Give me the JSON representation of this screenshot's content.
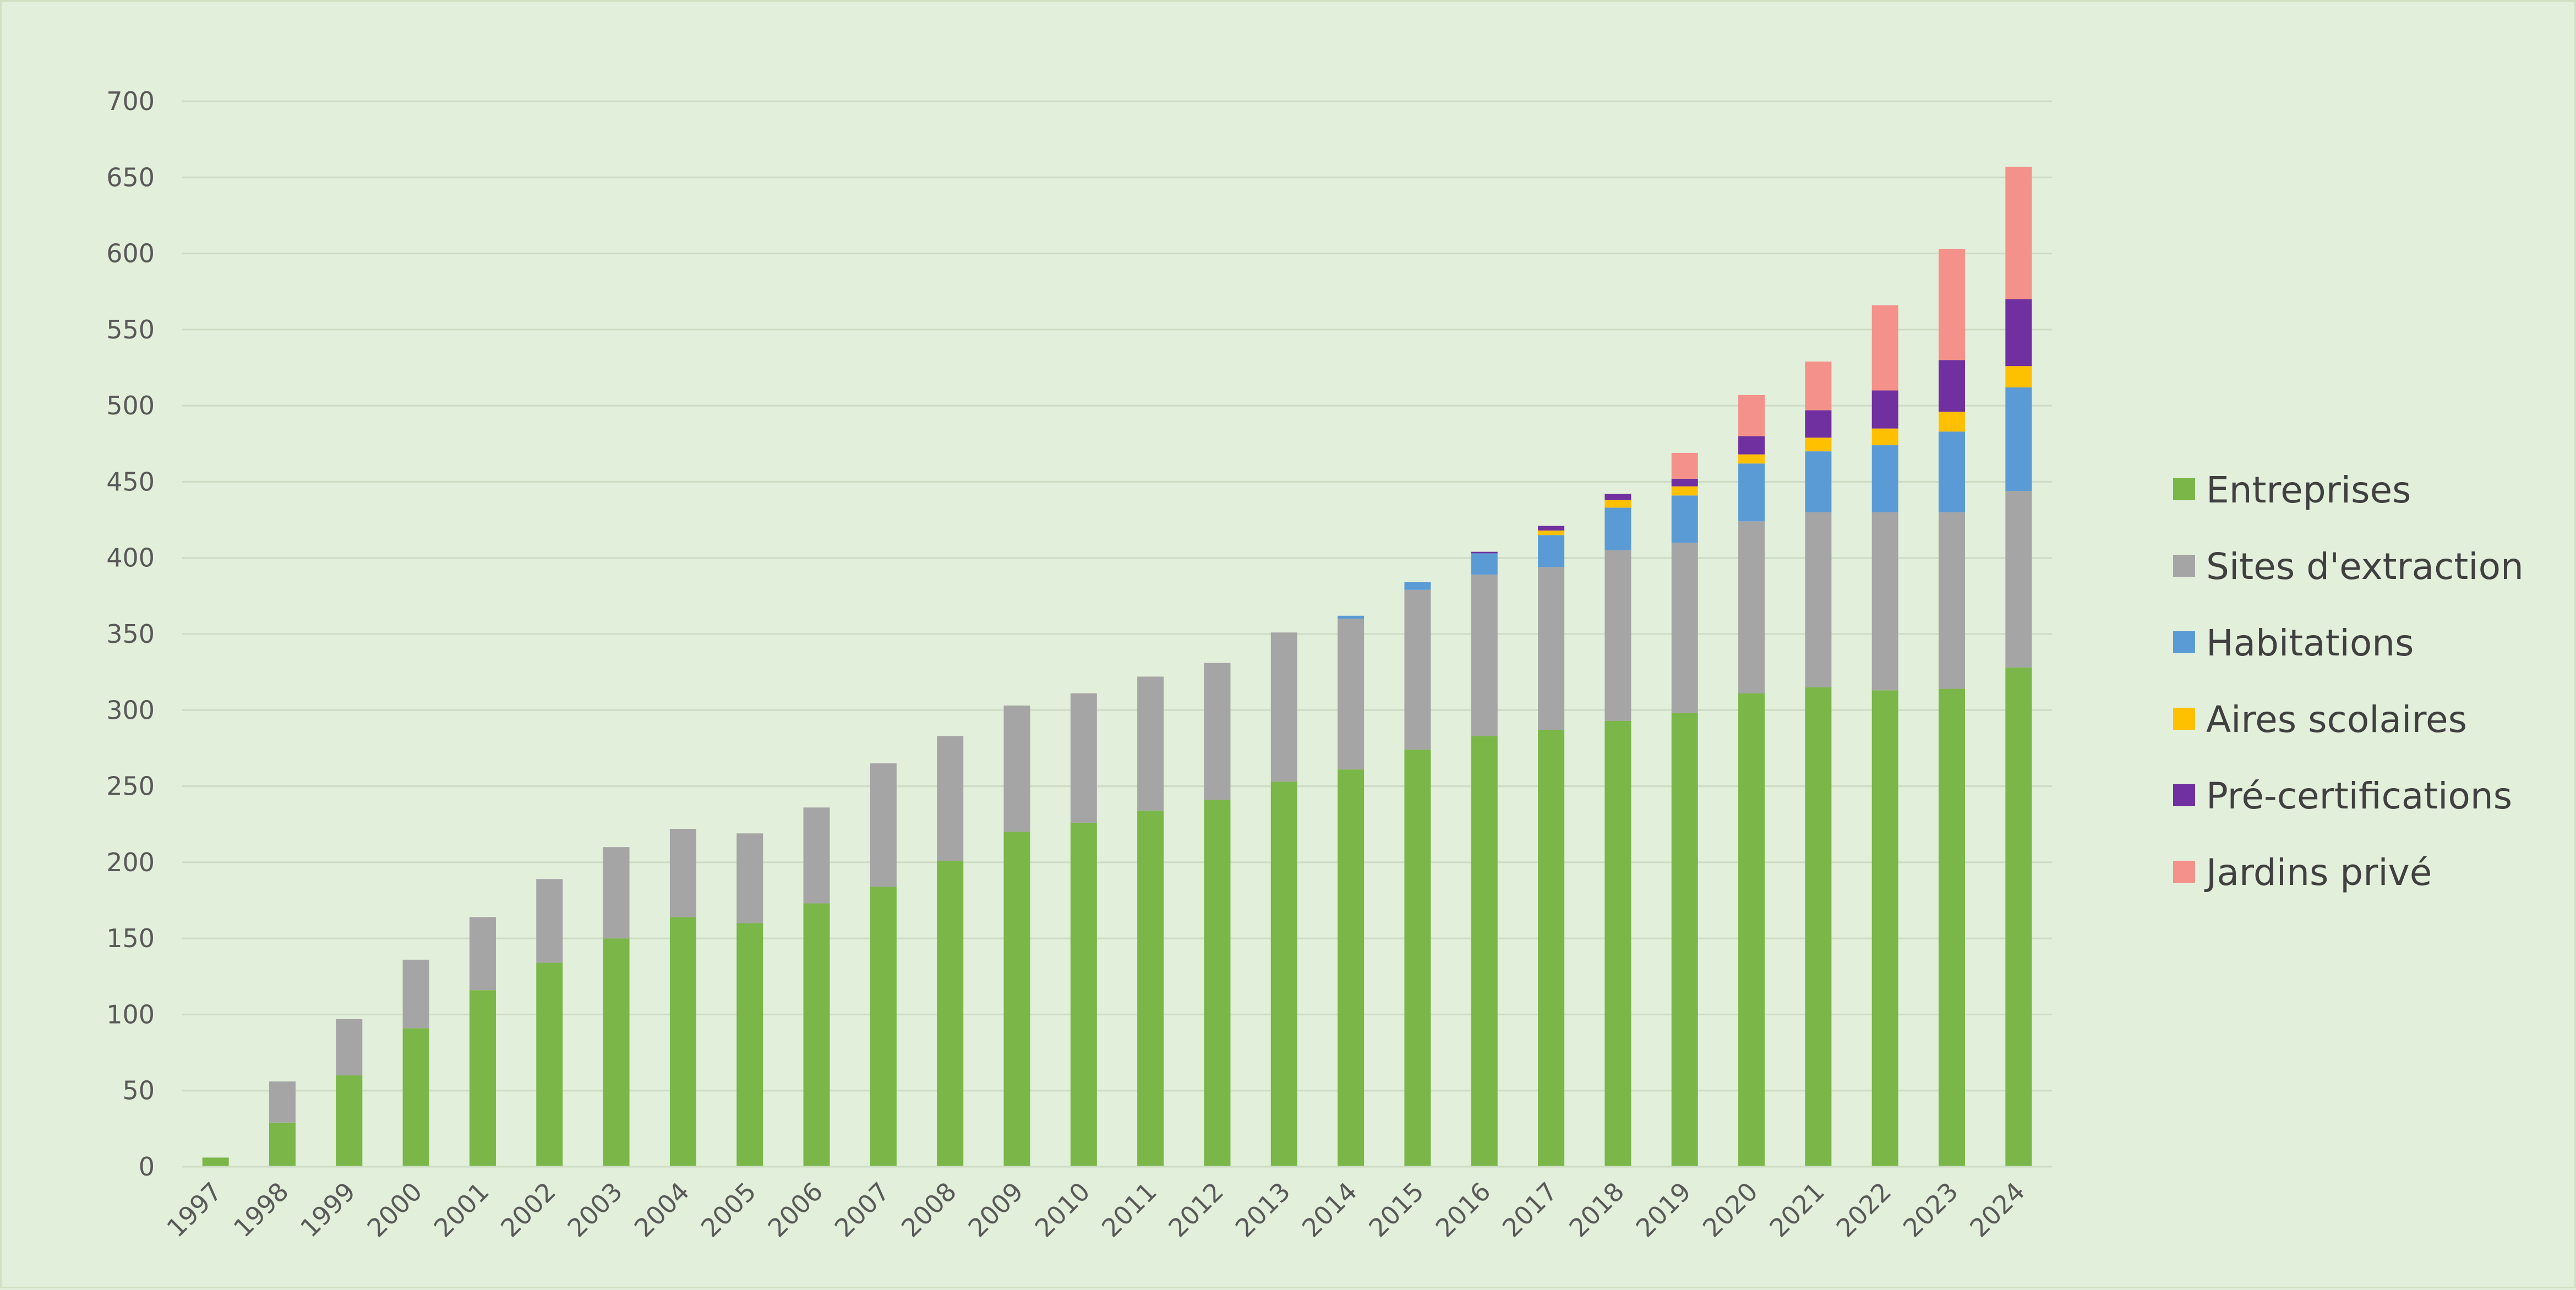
{
  "chart_data": {
    "type": "bar",
    "stacked": true,
    "title": "",
    "xlabel": "",
    "ylabel": "",
    "ylim": [
      0,
      700
    ],
    "yticks": [
      0,
      50,
      100,
      150,
      200,
      250,
      300,
      350,
      400,
      450,
      500,
      550,
      600,
      650,
      700
    ],
    "grid": true,
    "legend_position": "right",
    "categories": [
      "1997",
      "1998",
      "1999",
      "2000",
      "2001",
      "2002",
      "2003",
      "2004",
      "2005",
      "2006",
      "2007",
      "2008",
      "2009",
      "2010",
      "2011",
      "2012",
      "2013",
      "2014",
      "2015",
      "2016",
      "2017",
      "2018",
      "2019",
      "2020",
      "2021",
      "2022",
      "2023",
      "2024"
    ],
    "series": [
      {
        "name": "Entreprises",
        "color": "#7ab648",
        "values": [
          6,
          29,
          60,
          91,
          116,
          134,
          150,
          164,
          160,
          173,
          184,
          201,
          220,
          226,
          234,
          241,
          253,
          261,
          274,
          283,
          287,
          293,
          298,
          311,
          315,
          313,
          314,
          328
        ]
      },
      {
        "name": "Sites d'extraction",
        "color": "#a5a5a5",
        "values": [
          0,
          27,
          37,
          45,
          48,
          55,
          60,
          58,
          59,
          63,
          81,
          82,
          83,
          85,
          88,
          90,
          98,
          99,
          105,
          106,
          107,
          112,
          112,
          113,
          115,
          117,
          116,
          116
        ]
      },
      {
        "name": "Habitations",
        "color": "#5b9bd5",
        "values": [
          0,
          0,
          0,
          0,
          0,
          0,
          0,
          0,
          0,
          0,
          0,
          0,
          0,
          0,
          0,
          0,
          0,
          2,
          5,
          14,
          21,
          28,
          31,
          38,
          40,
          44,
          53,
          68
        ]
      },
      {
        "name": "Aires scolaires",
        "color": "#ffc000",
        "values": [
          0,
          0,
          0,
          0,
          0,
          0,
          0,
          0,
          0,
          0,
          0,
          0,
          0,
          0,
          0,
          0,
          0,
          0,
          0,
          0,
          3,
          5,
          6,
          6,
          9,
          11,
          13,
          14
        ]
      },
      {
        "name": "Pré-certifications",
        "color": "#7030a0",
        "values": [
          0,
          0,
          0,
          0,
          0,
          0,
          0,
          0,
          0,
          0,
          0,
          0,
          0,
          0,
          0,
          0,
          0,
          0,
          0,
          1,
          3,
          4,
          5,
          12,
          18,
          25,
          34,
          44
        ]
      },
      {
        "name": "Jardins privé",
        "color": "#f4918a",
        "values": [
          0,
          0,
          0,
          0,
          0,
          0,
          0,
          0,
          0,
          0,
          0,
          0,
          0,
          0,
          0,
          0,
          0,
          0,
          0,
          0,
          0,
          0,
          17,
          27,
          32,
          56,
          73,
          87
        ]
      }
    ]
  }
}
